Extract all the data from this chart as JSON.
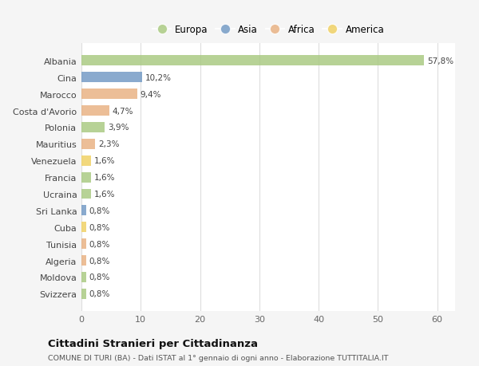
{
  "categories": [
    "Albania",
    "Cina",
    "Marocco",
    "Costa d'Avorio",
    "Polonia",
    "Mauritius",
    "Venezuela",
    "Francia",
    "Ucraina",
    "Sri Lanka",
    "Cuba",
    "Tunisia",
    "Algeria",
    "Moldova",
    "Svizzera"
  ],
  "values": [
    57.8,
    10.2,
    9.4,
    4.7,
    3.9,
    2.3,
    1.6,
    1.6,
    1.6,
    0.8,
    0.8,
    0.8,
    0.8,
    0.8,
    0.8
  ],
  "labels": [
    "57,8%",
    "10,2%",
    "9,4%",
    "4,7%",
    "3,9%",
    "2,3%",
    "1,6%",
    "1,6%",
    "1,6%",
    "0,8%",
    "0,8%",
    "0,8%",
    "0,8%",
    "0,8%",
    "0,8%"
  ],
  "colors": [
    "#a8c97f",
    "#7098c4",
    "#e8b080",
    "#e8b080",
    "#a8c97f",
    "#e8b080",
    "#f0d060",
    "#a8c97f",
    "#a8c97f",
    "#7098c4",
    "#f0d060",
    "#e8b080",
    "#e8b080",
    "#a8c97f",
    "#a8c97f"
  ],
  "continents": [
    "Europa",
    "Asia",
    "Africa",
    "America"
  ],
  "legend_colors": [
    "#a8c97f",
    "#7098c4",
    "#e8b080",
    "#f0d060"
  ],
  "title": "Cittadini Stranieri per Cittadinanza",
  "subtitle": "COMUNE DI TURI (BA) - Dati ISTAT al 1° gennaio di ogni anno - Elaborazione TUTTITALIA.IT",
  "xlabel_ticks": [
    0,
    10,
    20,
    30,
    40,
    50,
    60
  ],
  "xlim": [
    0,
    63
  ],
  "background_color": "#f5f5f5",
  "plot_bg_color": "#ffffff",
  "grid_color": "#dddddd",
  "bar_height": 0.62,
  "bar_alpha": 0.82
}
